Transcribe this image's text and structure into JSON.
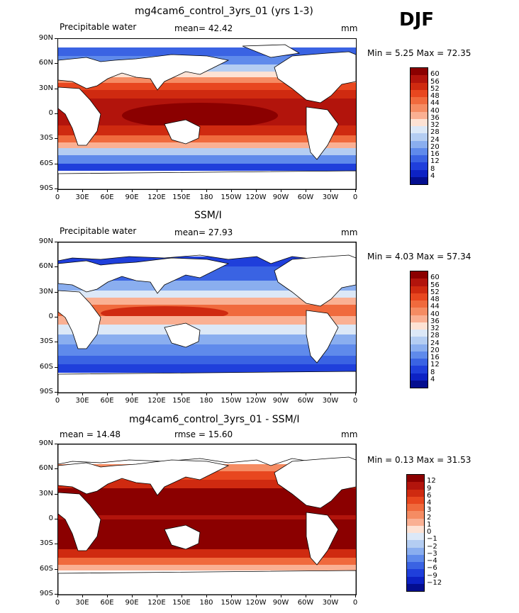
{
  "season": "DJF",
  "lat_labels": [
    "90N",
    "60N",
    "30N",
    "0",
    "30S",
    "60S",
    "90S"
  ],
  "lon_labels": [
    "0",
    "30E",
    "60E",
    "90E",
    "120E",
    "150E",
    "180",
    "150W",
    "120W",
    "90W",
    "60W",
    "30W",
    "0"
  ],
  "panels": [
    {
      "title": "mg4cam6_control_3yrs_01 (yrs 1-3)",
      "left_label": "Precipitable water",
      "center_label": "mean=  42.42",
      "unit": "mm",
      "minmax": "Min =    5.25 Max =   72.35",
      "colorbar_labels": [
        "60",
        "56",
        "52",
        "48",
        "44",
        "40",
        "36",
        "32",
        "28",
        "24",
        "20",
        "16",
        "12",
        "8",
        "4"
      ]
    },
    {
      "title": "SSM/I",
      "left_label": "Precipitable water",
      "center_label": "mean=  27.93",
      "unit": "mm",
      "minmax": "Min =    4.03 Max =   57.34",
      "colorbar_labels": [
        "60",
        "56",
        "52",
        "48",
        "44",
        "40",
        "36",
        "32",
        "28",
        "24",
        "20",
        "16",
        "12",
        "8",
        "4"
      ]
    },
    {
      "title": "mg4cam6_control_3yrs_01 - SSM/I",
      "left_label": "mean =  14.48",
      "center_label": "rmse =  15.60",
      "unit": "mm",
      "minmax": "Min =    0.13 Max =   31.53",
      "colorbar_labels": [
        "12",
        "9",
        "6",
        "4",
        "3",
        "2",
        "1",
        "0",
        "−1",
        "−2",
        "−3",
        "−4",
        "−6",
        "−9",
        "−12"
      ]
    }
  ],
  "colors": {
    "scale16": [
      "#8b0000",
      "#b2140c",
      "#cf2a10",
      "#e8471f",
      "#f06a3d",
      "#f58c63",
      "#fab093",
      "#fde2d4",
      "#dce8f7",
      "#b4cdf2",
      "#8aaeef",
      "#5f8aeb",
      "#3a63e3",
      "#1f3fdb",
      "#0d22c4",
      "#040e8f"
    ]
  }
}
